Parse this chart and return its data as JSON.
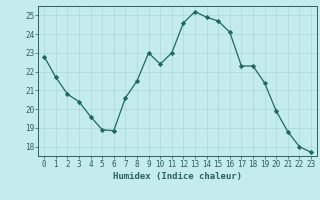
{
  "x": [
    0,
    1,
    2,
    3,
    4,
    5,
    6,
    7,
    8,
    9,
    10,
    11,
    12,
    13,
    14,
    15,
    16,
    17,
    18,
    19,
    20,
    21,
    22,
    23
  ],
  "y": [
    22.8,
    21.7,
    20.8,
    20.4,
    19.6,
    18.9,
    18.85,
    20.6,
    21.5,
    23.0,
    22.4,
    23.0,
    24.6,
    25.2,
    24.9,
    24.7,
    24.1,
    22.3,
    22.3,
    21.4,
    19.9,
    18.8,
    18.0,
    17.7
  ],
  "line_color": "#1a6b5e",
  "marker": "D",
  "markersize": 2.2,
  "linewidth": 0.9,
  "xlabel": "Humidex (Indice chaleur)",
  "xlim": [
    -0.5,
    23.5
  ],
  "ylim": [
    17.5,
    25.5
  ],
  "yticks": [
    18,
    19,
    20,
    21,
    22,
    23,
    24,
    25
  ],
  "xticks": [
    0,
    1,
    2,
    3,
    4,
    5,
    6,
    7,
    8,
    9,
    10,
    11,
    12,
    13,
    14,
    15,
    16,
    17,
    18,
    19,
    20,
    21,
    22,
    23
  ],
  "background_color": "#c5ecec",
  "grid_color": "#aad8d8",
  "axes_color": "#2a6060",
  "tick_fontsize": 5.5,
  "xlabel_fontsize": 6.5
}
